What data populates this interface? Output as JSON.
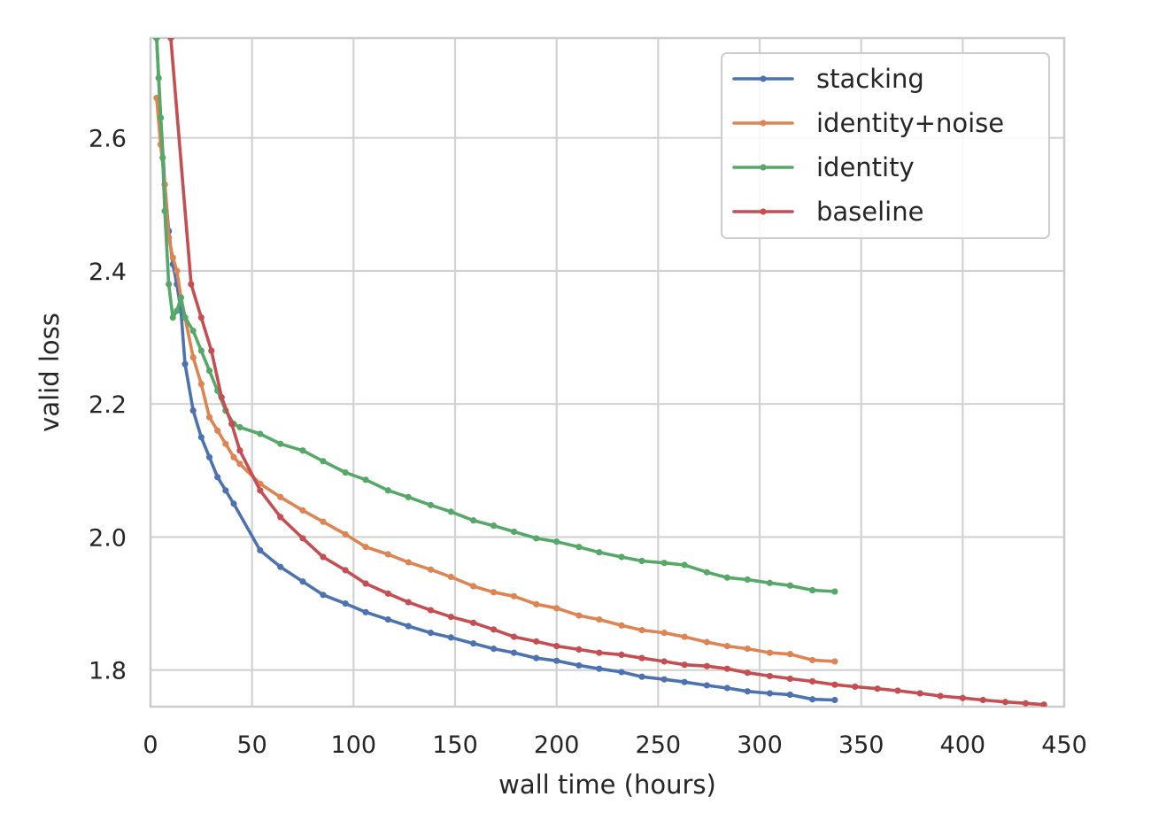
{
  "chart_data": {
    "type": "line",
    "title": "",
    "xlabel": "wall time (hours)",
    "ylabel": "valid loss",
    "xlim": [
      0,
      450
    ],
    "ylim": [
      1.745,
      2.75
    ],
    "xticks": [
      0,
      50,
      100,
      150,
      200,
      250,
      300,
      350,
      400,
      450
    ],
    "xtick_labels": [
      "0",
      "50",
      "100",
      "150",
      "200",
      "250",
      "300",
      "350",
      "400",
      "450"
    ],
    "yticks": [
      1.8,
      2.0,
      2.2,
      2.4,
      2.6
    ],
    "ytick_labels": [
      "1.8",
      "2.0",
      "2.2",
      "2.4",
      "2.6"
    ],
    "grid": true,
    "legend_position": "top-right",
    "series": [
      {
        "name": "stacking",
        "color": "#4c72b0",
        "x": [
          3,
          5,
          7,
          9,
          11,
          13,
          15,
          17,
          21,
          25,
          29,
          33,
          37,
          41,
          54,
          64,
          75,
          85,
          96,
          106,
          117,
          127,
          138,
          148,
          159,
          169,
          179,
          190,
          200,
          211,
          221,
          232,
          242,
          253,
          263,
          274,
          284,
          294,
          305,
          315,
          326,
          337
        ],
        "y": [
          2.75,
          2.63,
          2.53,
          2.46,
          2.41,
          2.38,
          2.34,
          2.26,
          2.19,
          2.15,
          2.12,
          2.09,
          2.07,
          2.05,
          1.98,
          1.955,
          1.933,
          1.913,
          1.9,
          1.887,
          1.876,
          1.866,
          1.856,
          1.849,
          1.84,
          1.832,
          1.826,
          1.818,
          1.814,
          1.807,
          1.802,
          1.797,
          1.79,
          1.786,
          1.782,
          1.777,
          1.773,
          1.768,
          1.765,
          1.763,
          1.756,
          1.755
        ]
      },
      {
        "name": "identity+noise",
        "color": "#dd8452",
        "x": [
          3,
          5,
          7,
          9,
          11,
          13,
          15,
          17,
          21,
          25,
          29,
          33,
          37,
          41,
          44,
          54,
          64,
          75,
          85,
          96,
          106,
          117,
          127,
          138,
          148,
          159,
          169,
          179,
          190,
          200,
          211,
          221,
          232,
          242,
          253,
          263,
          274,
          284,
          294,
          305,
          315,
          326,
          337
        ],
        "y": [
          2.66,
          2.59,
          2.53,
          2.45,
          2.42,
          2.4,
          2.36,
          2.33,
          2.27,
          2.23,
          2.18,
          2.16,
          2.14,
          2.12,
          2.11,
          2.08,
          2.06,
          2.04,
          2.023,
          2.004,
          1.985,
          1.974,
          1.962,
          1.951,
          1.94,
          1.926,
          1.917,
          1.911,
          1.899,
          1.893,
          1.882,
          1.876,
          1.867,
          1.86,
          1.856,
          1.85,
          1.842,
          1.836,
          1.832,
          1.826,
          1.824,
          1.815,
          1.813
        ]
      },
      {
        "name": "identity",
        "color": "#55a868",
        "x": [
          3,
          4,
          5,
          6,
          7,
          9,
          11,
          13,
          15,
          17,
          21,
          25,
          29,
          33,
          37,
          41,
          44,
          54,
          64,
          75,
          85,
          96,
          106,
          117,
          127,
          138,
          148,
          159,
          169,
          179,
          190,
          200,
          211,
          221,
          232,
          242,
          253,
          263,
          274,
          284,
          294,
          305,
          315,
          326,
          337
        ],
        "y": [
          2.75,
          2.69,
          2.63,
          2.57,
          2.49,
          2.38,
          2.33,
          2.34,
          2.36,
          2.33,
          2.31,
          2.28,
          2.25,
          2.22,
          2.19,
          2.17,
          2.165,
          2.155,
          2.14,
          2.13,
          2.114,
          2.097,
          2.086,
          2.07,
          2.06,
          2.048,
          2.038,
          2.025,
          2.017,
          2.008,
          1.998,
          1.993,
          1.985,
          1.977,
          1.97,
          1.964,
          1.961,
          1.958,
          1.947,
          1.939,
          1.936,
          1.931,
          1.927,
          1.92,
          1.918
        ]
      },
      {
        "name": "baseline",
        "color": "#c44e52",
        "x": [
          10,
          20,
          25,
          30,
          35,
          40,
          44,
          54,
          64,
          75,
          85,
          96,
          106,
          117,
          127,
          138,
          148,
          159,
          169,
          179,
          190,
          200,
          211,
          221,
          232,
          242,
          253,
          263,
          274,
          284,
          294,
          305,
          315,
          326,
          337,
          347,
          358,
          368,
          379,
          389,
          400,
          410,
          421,
          431,
          440
        ],
        "y": [
          2.75,
          2.38,
          2.33,
          2.28,
          2.21,
          2.17,
          2.13,
          2.07,
          2.03,
          1.998,
          1.97,
          1.95,
          1.93,
          1.915,
          1.902,
          1.89,
          1.88,
          1.871,
          1.861,
          1.85,
          1.843,
          1.836,
          1.831,
          1.826,
          1.823,
          1.818,
          1.813,
          1.808,
          1.806,
          1.802,
          1.796,
          1.791,
          1.787,
          1.783,
          1.778,
          1.775,
          1.772,
          1.769,
          1.765,
          1.761,
          1.758,
          1.755,
          1.752,
          1.75,
          1.748
        ]
      }
    ]
  }
}
